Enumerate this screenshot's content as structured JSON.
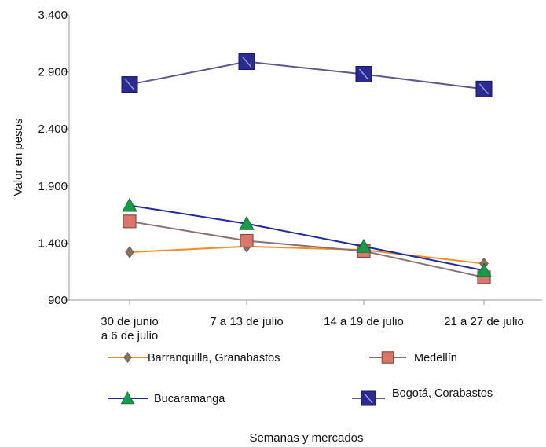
{
  "chart_data": {
    "type": "line",
    "title": "",
    "xlabel": "Semanas y mercados",
    "ylabel": "Valor en pesos",
    "ylim": [
      900,
      3400
    ],
    "yticks": [
      {
        "value": 900,
        "label": "900"
      },
      {
        "value": 1400,
        "label": "1.400"
      },
      {
        "value": 1900,
        "label": "1.900"
      },
      {
        "value": 2400,
        "label": "2.400"
      },
      {
        "value": 2900,
        "label": "2.900"
      },
      {
        "value": 3400,
        "label": "3.400"
      }
    ],
    "categories": [
      [
        "30 de junio",
        "a 6 de julio"
      ],
      [
        "7 a 13 de julio"
      ],
      [
        "14 a 19 de julio"
      ],
      [
        "21 a 27 de julio"
      ]
    ],
    "grid": false,
    "legend_position": "bottom",
    "series": [
      {
        "name": "Barranquilla, Granabastos",
        "color": "#f28c28",
        "marker": "diamond",
        "marker_color": "#8c7060",
        "values": [
          1320,
          1370,
          1340,
          1220
        ]
      },
      {
        "name": "Medellín",
        "color": "#8c7070",
        "marker": "square",
        "marker_color": "#d9786a",
        "values": [
          1590,
          1420,
          1330,
          1100
        ]
      },
      {
        "name": "Bucaramanga",
        "color": "#1f2a9c",
        "marker": "triangle",
        "marker_color": "#1a9a4a",
        "values": [
          1730,
          1570,
          1370,
          1160
        ]
      },
      {
        "name": "Bogotá, Corabastos",
        "color": "#5a5a8a",
        "marker": "bowtie",
        "marker_color": "#2a2a90",
        "values": [
          2790,
          2990,
          2880,
          2750
        ]
      }
    ]
  }
}
